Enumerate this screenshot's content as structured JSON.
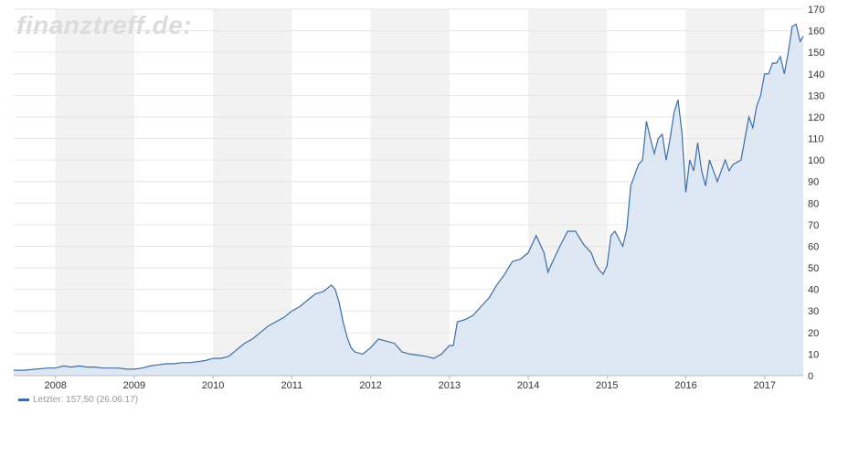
{
  "watermark": "finanztreff.de:",
  "legend": {
    "label": "Letzter: 157,50 (26.06.17)",
    "color": "#3b6ea5"
  },
  "chart_data": {
    "type": "area",
    "title": "",
    "xlabel": "",
    "ylabel": "",
    "ylim": [
      0,
      170
    ],
    "yticks": [
      0,
      10,
      20,
      30,
      40,
      50,
      60,
      70,
      80,
      90,
      100,
      110,
      120,
      130,
      140,
      150,
      160,
      170
    ],
    "xlim": [
      2007.47,
      2017.49
    ],
    "xticks": [
      "2008",
      "2009",
      "2010",
      "2011",
      "2012",
      "2013",
      "2014",
      "2015",
      "2016",
      "2017"
    ],
    "year_bands": "alternating",
    "grid": true,
    "line_color": "#3b6ea5",
    "fill_color": "#dde8f4",
    "band_color": "#f2f2f2",
    "series": [
      {
        "name": "",
        "x": [
          2007.47,
          2007.6,
          2007.75,
          2007.9,
          2008.0,
          2008.1,
          2008.2,
          2008.3,
          2008.4,
          2008.5,
          2008.6,
          2008.7,
          2008.8,
          2008.9,
          2009.0,
          2009.1,
          2009.2,
          2009.3,
          2009.4,
          2009.5,
          2009.6,
          2009.7,
          2009.8,
          2009.9,
          2010.0,
          2010.1,
          2010.2,
          2010.3,
          2010.4,
          2010.5,
          2010.6,
          2010.7,
          2010.8,
          2010.9,
          2011.0,
          2011.1,
          2011.2,
          2011.3,
          2011.4,
          2011.5,
          2011.55,
          2011.6,
          2011.65,
          2011.7,
          2011.75,
          2011.8,
          2011.9,
          2012.0,
          2012.1,
          2012.2,
          2012.3,
          2012.4,
          2012.5,
          2012.6,
          2012.7,
          2012.8,
          2012.9,
          2013.0,
          2013.05,
          2013.1,
          2013.2,
          2013.3,
          2013.4,
          2013.5,
          2013.6,
          2013.7,
          2013.8,
          2013.9,
          2014.0,
          2014.1,
          2014.2,
          2014.25,
          2014.3,
          2014.4,
          2014.5,
          2014.6,
          2014.7,
          2014.8,
          2014.85,
          2014.9,
          2014.95,
          2015.0,
          2015.05,
          2015.1,
          2015.2,
          2015.25,
          2015.3,
          2015.35,
          2015.4,
          2015.45,
          2015.5,
          2015.55,
          2015.6,
          2015.65,
          2015.7,
          2015.75,
          2015.8,
          2015.85,
          2015.9,
          2015.95,
          2016.0,
          2016.05,
          2016.1,
          2016.15,
          2016.2,
          2016.25,
          2016.3,
          2016.4,
          2016.5,
          2016.55,
          2016.6,
          2016.7,
          2016.8,
          2016.85,
          2016.9,
          2016.95,
          2017.0,
          2017.05,
          2017.1,
          2017.15,
          2017.2,
          2017.25,
          2017.3,
          2017.35,
          2017.4,
          2017.45,
          2017.49
        ],
        "values": [
          2.5,
          2.5,
          3,
          3.5,
          3.5,
          4.5,
          4,
          4.5,
          4,
          4,
          3.5,
          3.5,
          3.5,
          3,
          3,
          3.5,
          4.5,
          5,
          5.5,
          5.5,
          6,
          6,
          6.5,
          7,
          8,
          8,
          9,
          12,
          15,
          17,
          20,
          23,
          25,
          27,
          30,
          32,
          35,
          38,
          39,
          42,
          40,
          34,
          25,
          18,
          13,
          11,
          10,
          13,
          17,
          16,
          15,
          11,
          10,
          9.5,
          9,
          8,
          10,
          14,
          14,
          25,
          26,
          28,
          32,
          36,
          42,
          47,
          53,
          54,
          57,
          65,
          57,
          48,
          52,
          60,
          67,
          67,
          61,
          57,
          52,
          49,
          47,
          51,
          65,
          67,
          60,
          68,
          88,
          93,
          98,
          100,
          118,
          110,
          103,
          110,
          112,
          100,
          110,
          122,
          128,
          113,
          85,
          100,
          95,
          108,
          95,
          88,
          100,
          90,
          100,
          95,
          98,
          100,
          120,
          115,
          125,
          130,
          140,
          140,
          145,
          145,
          148,
          140,
          150,
          162,
          163,
          155,
          157.5
        ]
      }
    ]
  }
}
